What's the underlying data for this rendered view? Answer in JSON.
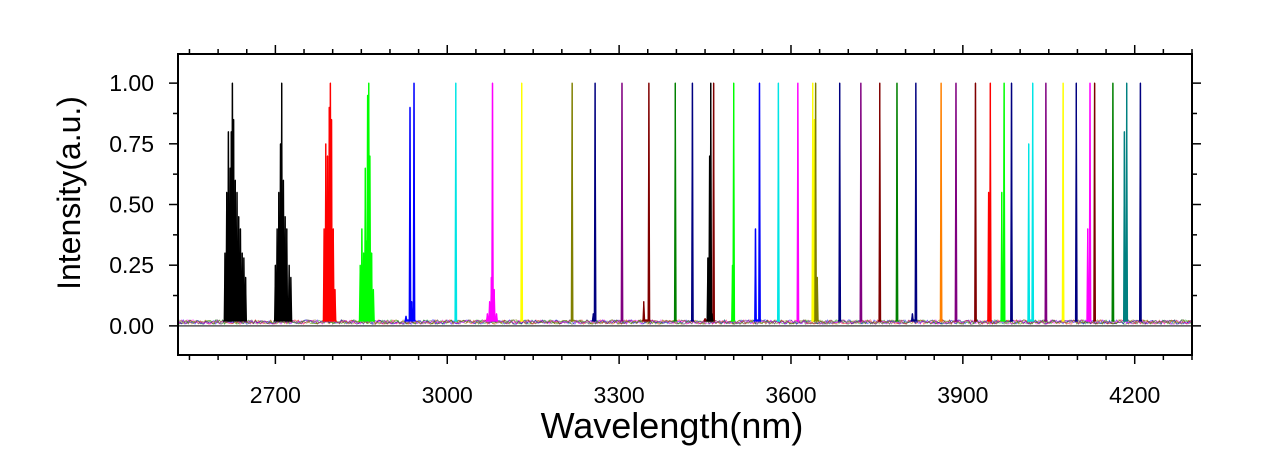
{
  "chart_data": {
    "type": "line",
    "title": "",
    "xlabel": "Wavelength(nm)",
    "ylabel": "Intensity(a.u.)",
    "xlim": [
      2530,
      4300
    ],
    "ylim": [
      -0.12,
      1.12
    ],
    "x_ticks": [
      2700,
      3000,
      3300,
      3600,
      3900,
      4200
    ],
    "x_tick_labels": [
      "2700",
      "3000",
      "3300",
      "3600",
      "3900",
      "4200"
    ],
    "y_ticks": [
      0.0,
      0.25,
      0.5,
      0.75,
      1.0
    ],
    "y_tick_labels": [
      "0.00",
      "0.25",
      "0.50",
      "0.75",
      "1.00"
    ],
    "grid": false,
    "legend": "none",
    "baseline_level": 0.02,
    "series": [
      {
        "color": "#000000",
        "peaks": [
          [
            2612,
            0.3
          ],
          [
            2615,
            0.55
          ],
          [
            2618,
            0.8
          ],
          [
            2621,
            0.65
          ],
          [
            2623,
            0.8
          ],
          [
            2625,
            1.0
          ],
          [
            2627,
            0.85
          ],
          [
            2630,
            0.6
          ],
          [
            2633,
            0.55
          ],
          [
            2636,
            0.45
          ],
          [
            2639,
            0.4
          ],
          [
            2642,
            0.3
          ],
          [
            2645,
            0.28
          ],
          [
            2648,
            0.2
          ]
        ]
      },
      {
        "color": "#000000",
        "peaks": [
          [
            2700,
            0.25
          ],
          [
            2703,
            0.4
          ],
          [
            2706,
            0.55
          ],
          [
            2709,
            0.75
          ],
          [
            2711,
            1.0
          ],
          [
            2714,
            0.6
          ],
          [
            2717,
            0.45
          ],
          [
            2720,
            0.4
          ],
          [
            2724,
            0.25
          ],
          [
            2727,
            0.2
          ]
        ]
      },
      {
        "color": "#ff0000",
        "peaks": [
          [
            2785,
            0.4
          ],
          [
            2788,
            0.75
          ],
          [
            2791,
            0.7
          ],
          [
            2794,
            0.9
          ],
          [
            2796,
            1.0
          ],
          [
            2798,
            0.85
          ],
          [
            2801,
            0.4
          ],
          [
            2804,
            0.15
          ]
        ]
      },
      {
        "color": "#00ff00",
        "peaks": [
          [
            2848,
            0.25
          ],
          [
            2851,
            0.4
          ],
          [
            2854,
            0.3
          ],
          [
            2857,
            0.65
          ],
          [
            2859,
            0.35
          ],
          [
            2861,
            0.95
          ],
          [
            2863,
            1.0
          ],
          [
            2865,
            0.7
          ],
          [
            2868,
            0.3
          ],
          [
            2871,
            0.15
          ]
        ]
      },
      {
        "color": "#0000ff",
        "peaks": [
          [
            2928,
            0.04
          ],
          [
            2935,
            0.9
          ],
          [
            2938,
            0.1
          ],
          [
            2942,
            1.0
          ]
        ]
      },
      {
        "color": "#00e5e5",
        "peaks": [
          [
            3015,
            1.0
          ]
        ]
      },
      {
        "color": "#ff00ff",
        "peaks": [
          [
            3070,
            0.05
          ],
          [
            3074,
            0.1
          ],
          [
            3077,
            0.2
          ],
          [
            3079,
            1.0
          ],
          [
            3082,
            0.15
          ],
          [
            3086,
            0.05
          ]
        ]
      },
      {
        "color": "#ffff00",
        "peaks": [
          [
            3130,
            1.0
          ]
        ]
      },
      {
        "color": "#808000",
        "peaks": [
          [
            3218,
            1.0
          ]
        ]
      },
      {
        "color": "#000080",
        "peaks": [
          [
            3255,
            0.05
          ],
          [
            3258,
            1.0
          ]
        ]
      },
      {
        "color": "#800080",
        "peaks": [
          [
            3305,
            1.0
          ]
        ]
      },
      {
        "color": "#800000",
        "peaks": [
          [
            3343,
            0.1
          ],
          [
            3352,
            1.0
          ]
        ]
      },
      {
        "color": "#008000",
        "peaks": [
          [
            3398,
            1.0
          ]
        ]
      },
      {
        "color": "#000080",
        "peaks": [
          [
            3428,
            1.0
          ]
        ]
      },
      {
        "color": "#800000",
        "peaks": [
          [
            3450,
            0.03
          ],
          [
            3456,
            0.1
          ],
          [
            3465,
            1.0
          ]
        ]
      },
      {
        "color": "#000000",
        "peaks": [
          [
            3455,
            0.28
          ],
          [
            3458,
            0.7
          ],
          [
            3460,
            1.0
          ],
          [
            3462,
            0.05
          ]
        ]
      },
      {
        "color": "#00ff00",
        "peaks": [
          [
            3498,
            0.25
          ],
          [
            3500,
            1.0
          ]
        ]
      },
      {
        "color": "#0000ff",
        "peaks": [
          [
            3538,
            0.4
          ],
          [
            3545,
            1.0
          ]
        ]
      },
      {
        "color": "#00e5e5",
        "peaks": [
          [
            3578,
            1.0
          ]
        ]
      },
      {
        "color": "#ff00ff",
        "peaks": [
          [
            3612,
            1.0
          ]
        ]
      },
      {
        "color": "#ffff00",
        "peaks": [
          [
            3638,
            1.0
          ],
          [
            3641,
            0.85
          ]
        ]
      },
      {
        "color": "#808000",
        "peaks": [
          [
            3643,
            1.0
          ],
          [
            3646,
            0.2
          ]
        ]
      },
      {
        "color": "#000080",
        "peaks": [
          [
            3685,
            1.0
          ]
        ]
      },
      {
        "color": "#800080",
        "peaks": [
          [
            3722,
            1.0
          ]
        ]
      },
      {
        "color": "#800000",
        "peaks": [
          [
            3755,
            1.0
          ]
        ]
      },
      {
        "color": "#008000",
        "peaks": [
          [
            3785,
            1.0
          ]
        ]
      },
      {
        "color": "#000080",
        "peaks": [
          [
            3812,
            0.05
          ],
          [
            3818,
            1.0
          ]
        ]
      },
      {
        "color": "#ff8000",
        "peaks": [
          [
            3862,
            1.0
          ]
        ]
      },
      {
        "color": "#800080",
        "peaks": [
          [
            3888,
            1.0
          ]
        ]
      },
      {
        "color": "#800000",
        "peaks": [
          [
            3922,
            1.0
          ]
        ]
      },
      {
        "color": "#ff0000",
        "peaks": [
          [
            3945,
            0.55
          ],
          [
            3948,
            1.0
          ]
        ]
      },
      {
        "color": "#00ff00",
        "peaks": [
          [
            3968,
            0.55
          ],
          [
            3972,
            1.0
          ]
        ]
      },
      {
        "color": "#000080",
        "peaks": [
          [
            3985,
            1.0
          ]
        ]
      },
      {
        "color": "#00e5e5",
        "peaks": [
          [
            4015,
            0.75
          ],
          [
            4022,
            1.0
          ]
        ]
      },
      {
        "color": "#800080",
        "peaks": [
          [
            4045,
            1.0
          ]
        ]
      },
      {
        "color": "#ffff00",
        "peaks": [
          [
            4075,
            1.0
          ]
        ]
      },
      {
        "color": "#000080",
        "peaks": [
          [
            4098,
            1.0
          ]
        ]
      },
      {
        "color": "#ff00ff",
        "peaks": [
          [
            4118,
            0.4
          ],
          [
            4122,
            1.0
          ]
        ]
      },
      {
        "color": "#800000",
        "peaks": [
          [
            4130,
            1.0
          ]
        ]
      },
      {
        "color": "#008000",
        "peaks": [
          [
            4162,
            1.0
          ]
        ]
      },
      {
        "color": "#008080",
        "peaks": [
          [
            4182,
            0.8
          ],
          [
            4186,
            1.0
          ]
        ]
      },
      {
        "color": "#000080",
        "peaks": [
          [
            4210,
            1.0
          ]
        ]
      }
    ]
  }
}
